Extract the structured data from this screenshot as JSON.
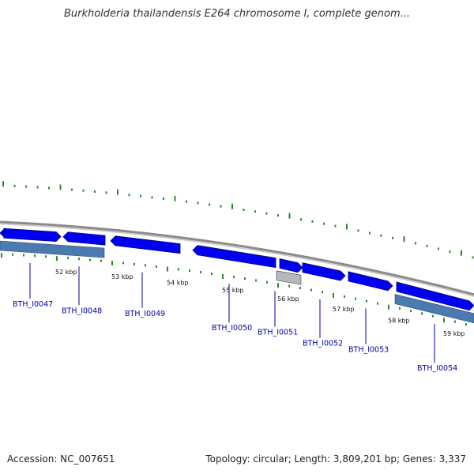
{
  "title": "Burkholderia thailandensis E264 chromosome I, complete genom...",
  "accession": "Accession: NC_007651",
  "summary": "Topology: circular; Length: 3,809,201 bp; Genes: 3,337",
  "kbp_labels": [
    "52 kbp",
    "53 kbp",
    "54 kbp",
    "55 kbp",
    "56 kbp",
    "57 kbp",
    "58 kbp",
    "59 kbp"
  ],
  "genes": [
    "BTH_I0047",
    "BTH_I0048",
    "BTH_I0049",
    "BTH_I0050",
    "BTH_I0051",
    "BTH_I0052",
    "BTH_I0053",
    "BTH_I0054"
  ],
  "colors": {
    "gene_forward": "#0000ee",
    "gene_reverse": "#4a7ab0",
    "gene_other": "#b8b8b8",
    "backbone": "#8a8a8a",
    "ticks": "#2a8a2a",
    "label_text": "#0000aa"
  }
}
